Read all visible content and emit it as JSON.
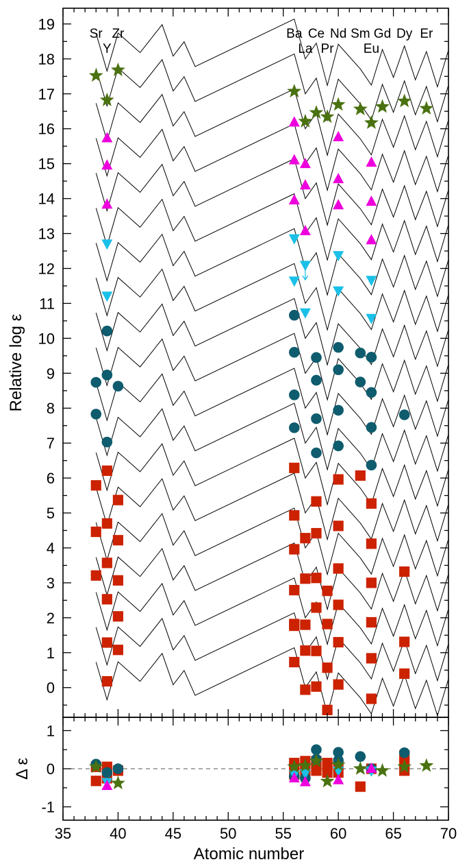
{
  "chart_data": [
    {
      "type": "scatter",
      "panel": "top",
      "ylabel": "Relative log ε",
      "xlim": [
        35,
        70
      ],
      "ylim": [
        -0.85,
        19.45
      ],
      "yticks": [
        0,
        1,
        2,
        3,
        4,
        5,
        6,
        7,
        8,
        9,
        10,
        11,
        12,
        13,
        14,
        15,
        16,
        17,
        18,
        19
      ],
      "element_labels_row1": [
        {
          "text": "Sr",
          "z": 38
        },
        {
          "text": "Zr",
          "z": 40
        },
        {
          "text": "Ba",
          "z": 56
        },
        {
          "text": "Ce",
          "z": 58
        },
        {
          "text": "Nd",
          "z": 60
        },
        {
          "text": "Sm",
          "z": 62
        },
        {
          "text": "Gd",
          "z": 64
        },
        {
          "text": "Dy",
          "z": 66
        },
        {
          "text": "Er",
          "z": 68
        }
      ],
      "element_labels_row2": [
        {
          "text": "Y",
          "z": 39
        },
        {
          "text": "La",
          "z": 57
        },
        {
          "text": "Pr",
          "z": 59
        },
        {
          "text": "Eu",
          "z": 63
        }
      ],
      "pattern": {
        "z": [
          38,
          39,
          40,
          42,
          44,
          45,
          46,
          47,
          56,
          57,
          58,
          59,
          60,
          62,
          63,
          64,
          65,
          66,
          67,
          68,
          69,
          70
        ],
        "y": [
          0.73,
          -0.35,
          0.74,
          0.18,
          0.98,
          0.08,
          0.49,
          -0.22,
          1.14,
          0.0,
          0.45,
          -0.76,
          0.42,
          -0.29,
          -0.75,
          0.27,
          -0.53,
          0.37,
          -0.6,
          0.21,
          -0.8,
          0.25
        ],
        "offsets": [
          0,
          1,
          2,
          3,
          4,
          5,
          6,
          7,
          8,
          9,
          10,
          11,
          12,
          13,
          14,
          15,
          16,
          17,
          18
        ]
      },
      "series": [
        {
          "name": "squares",
          "marker": "square",
          "color": "#cc2200",
          "points": [
            [
              39,
              0.18
            ],
            [
              56,
              0.73
            ],
            [
              57,
              -0.06
            ],
            [
              58,
              0.03
            ],
            [
              59,
              0.57
            ],
            [
              59,
              -0.64
            ],
            [
              60,
              0.09
            ],
            [
              63,
              -0.32
            ],
            [
              66,
              0.4
            ],
            [
              39,
              1.29
            ],
            [
              40,
              1.08
            ],
            [
              56,
              1.77
            ],
            [
              57,
              1.06
            ],
            [
              58,
              1.05
            ],
            [
              60,
              1.3
            ],
            [
              63,
              0.84
            ],
            [
              66,
              1.31
            ],
            [
              39,
              2.53
            ],
            [
              40,
              2.04
            ],
            [
              56,
              1.82
            ],
            [
              57,
              1.8
            ],
            [
              58,
              2.29
            ],
            [
              59,
              1.82
            ],
            [
              60,
              2.37
            ],
            [
              63,
              1.87
            ],
            [
              38,
              3.21
            ],
            [
              39,
              3.57
            ],
            [
              40,
              3.07
            ],
            [
              56,
              2.79
            ],
            [
              57,
              3.12
            ],
            [
              58,
              3.14
            ],
            [
              59,
              2.77
            ],
            [
              60,
              3.41
            ],
            [
              63,
              3.0
            ],
            [
              66,
              3.32
            ],
            [
              38,
              4.46
            ],
            [
              39,
              4.7
            ],
            [
              40,
              4.22
            ],
            [
              56,
              3.96
            ],
            [
              57,
              4.28
            ],
            [
              58,
              4.42
            ],
            [
              60,
              4.63
            ],
            [
              63,
              4.12
            ],
            [
              38,
              5.79
            ],
            [
              39,
              6.21
            ],
            [
              40,
              5.37
            ],
            [
              56,
              4.93
            ],
            [
              58,
              5.33
            ],
            [
              60,
              5.96
            ],
            [
              62,
              6.07
            ],
            [
              63,
              5.27
            ],
            [
              56,
              6.29
            ]
          ]
        },
        {
          "name": "circles",
          "marker": "circle",
          "color": "#0e5c6e",
          "points": [
            [
              39,
              7.03
            ],
            [
              58,
              6.72
            ],
            [
              60,
              6.92
            ],
            [
              63,
              6.37
            ],
            [
              38,
              7.83
            ],
            [
              56,
              7.44
            ],
            [
              58,
              7.7
            ],
            [
              60,
              7.94
            ],
            [
              63,
              7.45
            ],
            [
              66,
              7.81
            ],
            [
              38,
              8.74
            ],
            [
              39,
              8.95
            ],
            [
              40,
              8.63
            ],
            [
              56,
              8.38
            ],
            [
              58,
              8.8
            ],
            [
              60,
              9.1
            ],
            [
              62,
              8.75
            ],
            [
              63,
              8.45
            ],
            [
              39,
              10.21
            ],
            [
              56,
              9.6
            ],
            [
              58,
              9.45
            ],
            [
              60,
              9.74
            ],
            [
              62,
              9.58
            ],
            [
              63,
              9.46
            ],
            [
              56,
              10.66
            ]
          ]
        },
        {
          "name": "triangles-down",
          "marker": "triangle-down",
          "color": "#1ac0e8",
          "points": [
            [
              39,
              11.22
            ],
            [
              57,
              10.74
            ],
            [
              60,
              11.37
            ],
            [
              63,
              10.58
            ],
            [
              39,
              12.71
            ],
            [
              56,
              11.65
            ],
            [
              57,
              12.1
            ],
            [
              60,
              12.38
            ],
            [
              63,
              11.67
            ],
            [
              56,
              12.86
            ]
          ]
        },
        {
          "name": "upper-limit",
          "marker": "arrow-down",
          "color": "#1ac0e8",
          "points": [
            [
              57,
              11.95
            ]
          ]
        },
        {
          "name": "triangles-up",
          "marker": "triangle-up",
          "color": "#ee00dd",
          "points": [
            [
              39,
              13.83
            ],
            [
              56,
              13.95
            ],
            [
              57,
              13.07
            ],
            [
              60,
              13.81
            ],
            [
              63,
              12.81
            ],
            [
              39,
              14.95
            ],
            [
              56,
              15.1
            ],
            [
              57,
              14.99
            ],
            [
              60,
              14.56
            ],
            [
              63,
              13.91
            ],
            [
              39,
              15.73
            ],
            [
              57,
              14.38
            ],
            [
              60,
              15.76
            ],
            [
              63,
              15.03
            ],
            [
              56,
              16.18
            ]
          ]
        },
        {
          "name": "stars",
          "marker": "star",
          "color": "#4a7210",
          "points": [
            [
              38,
              17.52
            ],
            [
              39,
              16.82
            ],
            [
              40,
              17.68
            ],
            [
              56,
              17.07
            ],
            [
              57,
              16.21
            ],
            [
              58,
              16.46
            ],
            [
              59,
              16.34
            ],
            [
              60,
              16.69
            ],
            [
              62,
              16.56
            ],
            [
              63,
              16.17
            ],
            [
              64,
              16.63
            ],
            [
              66,
              16.79
            ],
            [
              68,
              16.58
            ]
          ]
        }
      ]
    },
    {
      "type": "scatter",
      "panel": "bottom",
      "xlabel": "Atomic number",
      "ylabel": "Δ ε",
      "xlim": [
        35,
        70
      ],
      "ylim": [
        -1.35,
        1.35
      ],
      "xticks": [
        35,
        40,
        45,
        50,
        55,
        60,
        65,
        70
      ],
      "yticks": [
        -1,
        0,
        1
      ],
      "reference_line": 0,
      "series": [
        {
          "name": "squares",
          "marker": "square",
          "color": "#cc2200",
          "points": [
            [
              38,
              -0.32
            ],
            [
              38,
              0.05
            ],
            [
              39,
              -0.25
            ],
            [
              39,
              0.05
            ],
            [
              40,
              -0.05
            ],
            [
              56,
              -0.15
            ],
            [
              56,
              0.05
            ],
            [
              56,
              0.15
            ],
            [
              57,
              -0.1
            ],
            [
              57,
              0.05
            ],
            [
              57,
              0.2
            ],
            [
              58,
              -0.05
            ],
            [
              58,
              0.2
            ],
            [
              58,
              0.05
            ],
            [
              59,
              -0.1
            ],
            [
              59,
              0.15
            ],
            [
              59,
              0.05
            ],
            [
              60,
              0.1
            ],
            [
              60,
              -0.1
            ],
            [
              62,
              -0.47
            ],
            [
              63,
              0.0
            ],
            [
              66,
              0.35
            ],
            [
              66,
              -0.05
            ],
            [
              66,
              0.15
            ]
          ]
        },
        {
          "name": "circles",
          "marker": "circle",
          "color": "#0e5c6e",
          "points": [
            [
              38,
              0.12
            ],
            [
              39,
              -0.1
            ],
            [
              40,
              0.0
            ],
            [
              56,
              -0.2
            ],
            [
              57,
              -0.25
            ],
            [
              58,
              0.5
            ],
            [
              58,
              0.25
            ],
            [
              60,
              0.43
            ],
            [
              60,
              0.22
            ],
            [
              62,
              0.32
            ],
            [
              63,
              0.0
            ],
            [
              66,
              0.42
            ]
          ]
        },
        {
          "name": "triangles-down",
          "marker": "triangle-down",
          "color": "#1ac0e8",
          "points": [
            [
              39,
              -0.35
            ],
            [
              56,
              -0.15
            ],
            [
              57,
              -0.12
            ],
            [
              60,
              -0.05
            ],
            [
              63,
              -0.05
            ]
          ]
        },
        {
          "name": "triangles-up",
          "marker": "triangle-up",
          "color": "#ee00dd",
          "points": [
            [
              39,
              -0.45
            ],
            [
              56,
              -0.25
            ],
            [
              57,
              -0.35
            ],
            [
              60,
              -0.3
            ],
            [
              63,
              0.0
            ]
          ]
        },
        {
          "name": "stars",
          "marker": "star",
          "color": "#4a7210",
          "points": [
            [
              38,
              0.05
            ],
            [
              40,
              -0.38
            ],
            [
              56,
              0.05
            ],
            [
              57,
              0.08
            ],
            [
              58,
              0.2
            ],
            [
              59,
              -0.33
            ],
            [
              60,
              0.1
            ],
            [
              62,
              0.0
            ],
            [
              64,
              -0.05
            ],
            [
              66,
              0.05
            ],
            [
              68,
              0.08
            ]
          ]
        }
      ]
    }
  ]
}
